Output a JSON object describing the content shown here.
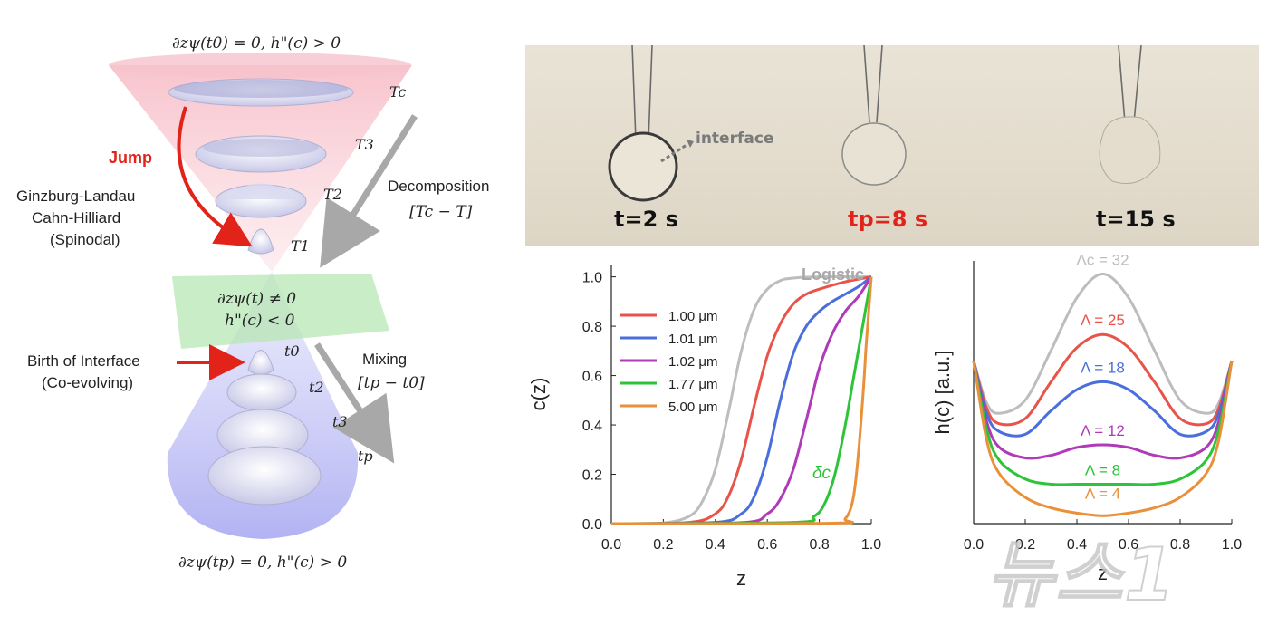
{
  "cone": {
    "top_eq": "∂zψ(t0) = 0, h\"(c) > 0",
    "bottom_eq": "∂zψ(tp) = 0, h\"(c) > 0",
    "mid_eq_1": "∂zψ(t) ≠ 0",
    "mid_eq_2": "h\"(c) < 0",
    "jump": "Jump",
    "gl_1": "Ginzburg-Landau",
    "gl_2": "Cahn-Hilliard",
    "gl_3": "(Spinodal)",
    "birth_1": "Birth of Interface",
    "birth_2": "(Co-evolving)",
    "decomp": "Decomposition",
    "decomp_eq": "[Tc − T]",
    "mixing": "Mixing",
    "mixing_eq": "[tp − t0]",
    "temps": [
      "Tc",
      "T3",
      "T2",
      "T1"
    ],
    "times": [
      "t0",
      "t2",
      "t3",
      "tp"
    ]
  },
  "photos": {
    "labels": [
      "t=2 s",
      "tp=8 s",
      "t=15 s"
    ],
    "interface": "interface"
  },
  "chart_data": [
    {
      "type": "line",
      "xlabel": "z",
      "ylabel": "c(z)",
      "xlim": [
        0,
        1
      ],
      "ylim": [
        0,
        1.05
      ],
      "xticks": [
        "0.0",
        "0.2",
        "0.4",
        "0.6",
        "0.8",
        "1.0"
      ],
      "yticks": [
        "0.0",
        "0.2",
        "0.4",
        "0.6",
        "0.8",
        "1.0"
      ],
      "annotation": "Logistic",
      "delta_label": "δc",
      "legend_position": "top-left",
      "series": [
        {
          "name": "",
          "color": "#bdbdbd",
          "x": [
            0,
            0.2,
            0.3,
            0.35,
            0.4,
            0.45,
            0.5,
            0.55,
            0.6,
            0.65,
            0.7,
            0.8,
            1.0
          ],
          "y": [
            0,
            0.003,
            0.03,
            0.09,
            0.22,
            0.45,
            0.7,
            0.87,
            0.95,
            0.985,
            0.995,
            1.0,
            1.0
          ]
        },
        {
          "name": "1.00 μm",
          "color": "#e8534a",
          "x": [
            0,
            0.3,
            0.4,
            0.45,
            0.5,
            0.55,
            0.6,
            0.65,
            0.7,
            0.75,
            0.8,
            0.9,
            1.0
          ],
          "y": [
            0,
            0.005,
            0.04,
            0.11,
            0.26,
            0.48,
            0.68,
            0.81,
            0.89,
            0.93,
            0.95,
            0.98,
            1.0
          ]
        },
        {
          "name": "1.01 μm",
          "color": "#4a6fdc",
          "x": [
            0,
            0.4,
            0.5,
            0.55,
            0.6,
            0.65,
            0.7,
            0.75,
            0.8,
            0.85,
            0.9,
            0.95,
            1.0
          ],
          "y": [
            0,
            0.005,
            0.04,
            0.11,
            0.27,
            0.5,
            0.69,
            0.8,
            0.86,
            0.9,
            0.93,
            0.96,
            1.0
          ]
        },
        {
          "name": "1.02 μm",
          "color": "#b03ab8",
          "x": [
            0,
            0.5,
            0.6,
            0.65,
            0.7,
            0.75,
            0.8,
            0.85,
            0.9,
            0.95,
            1.0
          ],
          "y": [
            0,
            0.004,
            0.04,
            0.1,
            0.22,
            0.42,
            0.63,
            0.77,
            0.86,
            0.92,
            1.0
          ]
        },
        {
          "name": "1.77 μm",
          "color": "#2ec43a",
          "x": [
            0,
            0.7,
            0.78,
            0.82,
            0.86,
            0.9,
            0.93,
            0.96,
            0.98,
            1.0
          ],
          "y": [
            0,
            0.005,
            0.03,
            0.08,
            0.2,
            0.4,
            0.58,
            0.76,
            0.88,
            1.0
          ]
        },
        {
          "name": "5.00 μm",
          "color": "#e8913a",
          "x": [
            0,
            0.85,
            0.9,
            0.93,
            0.95,
            0.97,
            0.98,
            0.99,
            1.0
          ],
          "y": [
            0,
            0.002,
            0.02,
            0.1,
            0.28,
            0.55,
            0.72,
            0.86,
            1.0
          ]
        }
      ]
    },
    {
      "type": "line",
      "xlabel": "z",
      "ylabel": "h(c) [a.u.]",
      "xlim": [
        0,
        1
      ],
      "xticks": [
        "0.0",
        "0.2",
        "0.4",
        "0.6",
        "0.8",
        "1.0"
      ],
      "series": [
        {
          "name": "Λc = 32",
          "color": "#bdbdbd",
          "x": [
            0,
            0.05,
            0.1,
            0.2,
            0.3,
            0.4,
            0.5,
            0.6,
            0.7,
            0.8,
            0.9,
            0.95,
            1.0
          ],
          "y": [
            0.62,
            0.46,
            0.42,
            0.47,
            0.66,
            0.86,
            0.95,
            0.86,
            0.66,
            0.47,
            0.42,
            0.46,
            0.62
          ]
        },
        {
          "name": "Λ = 25",
          "color": "#e8534a",
          "x": [
            0,
            0.05,
            0.1,
            0.2,
            0.3,
            0.4,
            0.5,
            0.6,
            0.7,
            0.8,
            0.9,
            0.95,
            1.0
          ],
          "y": [
            0.62,
            0.44,
            0.38,
            0.4,
            0.54,
            0.67,
            0.72,
            0.67,
            0.54,
            0.4,
            0.38,
            0.44,
            0.62
          ]
        },
        {
          "name": "Λ = 18",
          "color": "#4a6fdc",
          "x": [
            0,
            0.05,
            0.1,
            0.2,
            0.3,
            0.4,
            0.5,
            0.6,
            0.7,
            0.8,
            0.9,
            0.95,
            1.0
          ],
          "y": [
            0.62,
            0.42,
            0.35,
            0.34,
            0.43,
            0.51,
            0.54,
            0.51,
            0.43,
            0.34,
            0.35,
            0.42,
            0.62
          ]
        },
        {
          "name": "Λ = 12",
          "color": "#b03ab8",
          "x": [
            0,
            0.05,
            0.1,
            0.2,
            0.3,
            0.4,
            0.5,
            0.6,
            0.7,
            0.8,
            0.9,
            0.95,
            1.0
          ],
          "y": [
            0.62,
            0.39,
            0.29,
            0.25,
            0.26,
            0.29,
            0.3,
            0.29,
            0.26,
            0.25,
            0.29,
            0.39,
            0.62
          ]
        },
        {
          "name": "Λ = 8",
          "color": "#2ec43a",
          "x": [
            0,
            0.05,
            0.1,
            0.2,
            0.3,
            0.4,
            0.5,
            0.6,
            0.7,
            0.8,
            0.9,
            0.95,
            1.0
          ],
          "y": [
            0.62,
            0.36,
            0.24,
            0.17,
            0.15,
            0.15,
            0.15,
            0.15,
            0.15,
            0.17,
            0.24,
            0.36,
            0.62
          ]
        },
        {
          "name": "Λ = 4",
          "color": "#e8913a",
          "x": [
            0,
            0.05,
            0.1,
            0.2,
            0.3,
            0.4,
            0.5,
            0.6,
            0.7,
            0.8,
            0.9,
            0.95,
            1.0
          ],
          "y": [
            0.62,
            0.32,
            0.19,
            0.1,
            0.06,
            0.04,
            0.03,
            0.04,
            0.06,
            0.1,
            0.19,
            0.32,
            0.62
          ]
        }
      ]
    }
  ],
  "watermark": "뉴스1"
}
